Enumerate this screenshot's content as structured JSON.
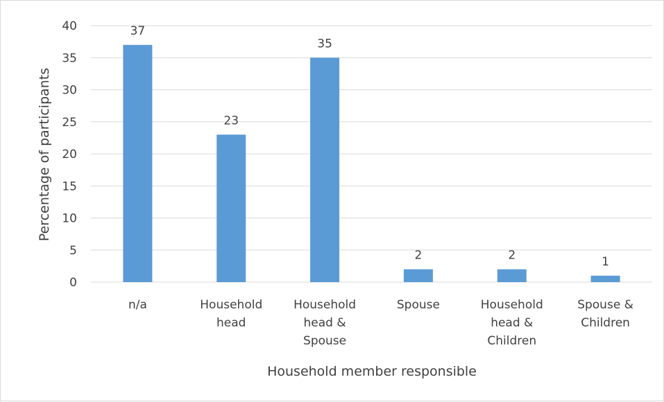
{
  "chart_data": {
    "type": "bar",
    "title": "",
    "xlabel": "Household member responsible",
    "ylabel": "Percentage of participants",
    "categories": [
      [
        "n/a"
      ],
      [
        "Household",
        "head"
      ],
      [
        "Household",
        "head &",
        "Spouse"
      ],
      [
        "Spouse"
      ],
      [
        "Household",
        "head &",
        "Children"
      ],
      [
        "Spouse &",
        "Children"
      ]
    ],
    "values": [
      37,
      23,
      35,
      2,
      2,
      1
    ],
    "data_labels": [
      "37",
      "23",
      "35",
      "2",
      "2",
      "1"
    ],
    "ylim": [
      0,
      40
    ],
    "yticks": [
      0,
      5,
      10,
      15,
      20,
      25,
      30,
      35,
      40
    ],
    "grid": true,
    "legend": "none",
    "bar_color": "#5b9bd5",
    "grid_color": "#d9d9d9",
    "text_color": "#404040"
  }
}
